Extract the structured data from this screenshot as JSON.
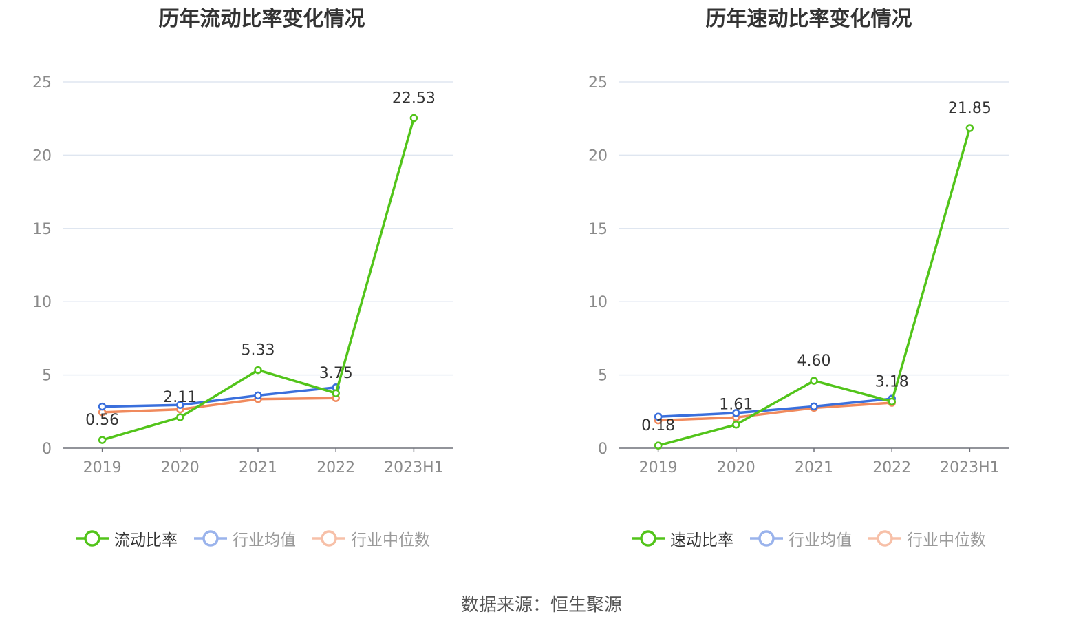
{
  "source_label": "数据来源：恒生聚源",
  "chart_data": [
    {
      "type": "line",
      "title": "历年流动比率变化情况",
      "categories": [
        "2019",
        "2020",
        "2021",
        "2022",
        "2023H1"
      ],
      "ylim": [
        0,
        25
      ],
      "yticks": [
        0,
        5,
        10,
        15,
        20,
        25
      ],
      "grid": true,
      "legend_position": "bottom",
      "series": [
        {
          "name": "流动比率",
          "color": "#52c41a",
          "values": [
            0.56,
            2.11,
            5.33,
            3.75,
            22.53
          ],
          "labels": [
            "0.56",
            "2.11",
            "5.33",
            "3.75",
            "22.53"
          ],
          "legend_active": true
        },
        {
          "name": "行业均值",
          "color": "#3a6fdc",
          "values": [
            2.84,
            2.95,
            3.6,
            4.15,
            null
          ],
          "legend_active": false,
          "legend_color": "#9ab3ec"
        },
        {
          "name": "行业中位数",
          "color": "#f08a5d",
          "values": [
            2.45,
            2.65,
            3.35,
            3.42,
            null
          ],
          "legend_active": false,
          "legend_color": "#f7c0a8"
        }
      ]
    },
    {
      "type": "line",
      "title": "历年速动比率变化情况",
      "categories": [
        "2019",
        "2020",
        "2021",
        "2022",
        "2023H1"
      ],
      "ylim": [
        0,
        25
      ],
      "yticks": [
        0,
        5,
        10,
        15,
        20,
        25
      ],
      "grid": true,
      "legend_position": "bottom",
      "series": [
        {
          "name": "速动比率",
          "color": "#52c41a",
          "values": [
            0.18,
            1.61,
            4.6,
            3.18,
            21.85
          ],
          "labels": [
            "0.18",
            "1.61",
            "4.60",
            "3.18",
            "21.85"
          ],
          "legend_active": true
        },
        {
          "name": "行业均值",
          "color": "#3a6fdc",
          "values": [
            2.15,
            2.4,
            2.85,
            3.38,
            null
          ],
          "legend_active": false,
          "legend_color": "#9ab3ec"
        },
        {
          "name": "行业中位数",
          "color": "#f08a5d",
          "values": [
            1.9,
            2.1,
            2.75,
            3.1,
            null
          ],
          "legend_active": false,
          "legend_color": "#f7c0a8"
        }
      ]
    }
  ]
}
